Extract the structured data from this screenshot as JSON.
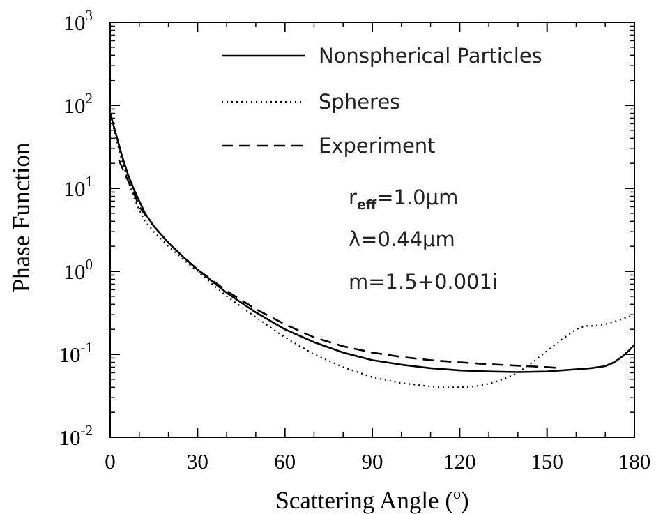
{
  "chart_data": {
    "type": "line",
    "title": "",
    "xlabel": "Scattering Angle (°)",
    "xlabel_main": "Scattering Angle (",
    "xlabel_sup": "o",
    "xlabel_end": ")",
    "ylabel": "Phase Function",
    "xlim": [
      0,
      180
    ],
    "ylim": [
      0.01,
      1000
    ],
    "yscale": "log",
    "grid": false,
    "legend_position": "top-right",
    "xticks": [
      0,
      30,
      60,
      90,
      120,
      150,
      180
    ],
    "xtick_labels": [
      "0",
      "30",
      "60",
      "90",
      "120",
      "150",
      "180"
    ],
    "yticks": [
      {
        "value": 0.01,
        "base": "10",
        "exp": "-2"
      },
      {
        "value": 0.1,
        "base": "10",
        "exp": "-1"
      },
      {
        "value": 1,
        "base": "10",
        "exp": "0"
      },
      {
        "value": 10,
        "base": "10",
        "exp": "1"
      },
      {
        "value": 100,
        "base": "10",
        "exp": "2"
      },
      {
        "value": 1000,
        "base": "10",
        "exp": "3"
      }
    ],
    "series": [
      {
        "name": "Nonspherical Particles",
        "style": "solid",
        "color": "#000000",
        "x": [
          0,
          2,
          4,
          6,
          8,
          10,
          12,
          15,
          20,
          25,
          30,
          40,
          50,
          60,
          70,
          80,
          90,
          100,
          110,
          120,
          130,
          140,
          150,
          155,
          160,
          165,
          170,
          173,
          176,
          178,
          180
        ],
        "y": [
          80,
          45,
          25,
          15,
          10,
          7,
          5,
          3.5,
          2.2,
          1.5,
          1.05,
          0.55,
          0.32,
          0.2,
          0.14,
          0.105,
          0.085,
          0.075,
          0.068,
          0.064,
          0.062,
          0.061,
          0.062,
          0.064,
          0.066,
          0.068,
          0.072,
          0.08,
          0.095,
          0.11,
          0.13
        ]
      },
      {
        "name": "Spheres",
        "style": "dotted",
        "color": "#000000",
        "x": [
          0,
          2,
          4,
          6,
          8,
          10,
          12,
          15,
          20,
          25,
          30,
          40,
          50,
          60,
          70,
          80,
          90,
          100,
          110,
          115,
          120,
          125,
          130,
          135,
          140,
          145,
          150,
          155,
          160,
          163,
          166,
          170,
          175,
          180
        ],
        "y": [
          80,
          40,
          22,
          13,
          8,
          5.5,
          4,
          3,
          2,
          1.4,
          1,
          0.5,
          0.28,
          0.16,
          0.1,
          0.07,
          0.053,
          0.045,
          0.041,
          0.04,
          0.04,
          0.041,
          0.044,
          0.05,
          0.06,
          0.08,
          0.11,
          0.15,
          0.2,
          0.22,
          0.22,
          0.23,
          0.26,
          0.3
        ]
      },
      {
        "name": "Experiment",
        "style": "dashed",
        "color": "#000000",
        "x": [
          3,
          5,
          8,
          10,
          15,
          20,
          25,
          30,
          40,
          50,
          60,
          70,
          80,
          90,
          100,
          110,
          120,
          130,
          140,
          150,
          155
        ],
        "y": [
          22,
          15,
          9,
          6,
          3.5,
          2.2,
          1.5,
          1.05,
          0.58,
          0.35,
          0.23,
          0.16,
          0.125,
          0.105,
          0.093,
          0.085,
          0.08,
          0.076,
          0.073,
          0.07,
          0.068
        ]
      }
    ],
    "annotations": [
      {
        "text_main": "r",
        "text_sub": "eff",
        "text_rest": "=1.0μm"
      },
      {
        "text_main": "λ=0.44μm"
      },
      {
        "text_main": "m=1.5+0.001i"
      }
    ]
  }
}
